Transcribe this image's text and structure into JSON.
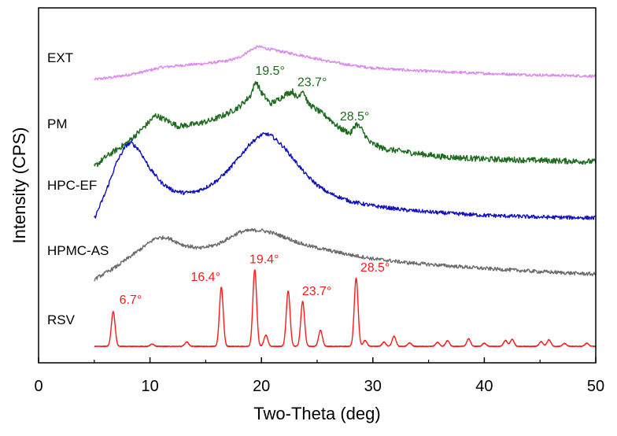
{
  "chart_data": {
    "type": "line",
    "title": "",
    "xlabel": "Two-Theta (deg)",
    "ylabel": "Intensity (CPS)",
    "xlim": [
      0,
      50
    ],
    "xticks": [
      "0",
      "10",
      "20",
      "30",
      "40",
      "50"
    ],
    "yticks_shown": false,
    "grid": false,
    "legend": "none",
    "series": [
      {
        "name": "EXT",
        "color": "#dd88ee",
        "x": [
          5,
          7,
          9,
          11,
          13,
          15,
          17,
          18,
          19,
          19.7,
          20.5,
          22,
          24,
          26,
          28,
          30,
          33,
          36,
          40,
          45,
          50
        ],
        "y": [
          0,
          0.5,
          1.2,
          2.2,
          2.6,
          2.9,
          3.4,
          4.0,
          5.3,
          6.0,
          5.6,
          5.0,
          4.2,
          3.3,
          2.6,
          2.1,
          1.7,
          1.4,
          1.1,
          0.8,
          0.6
        ],
        "noise": 0.25
      },
      {
        "name": "PM",
        "color": "#1e6a1e",
        "x": [
          5,
          6,
          8,
          9.5,
          10.5,
          11.5,
          12.5,
          14,
          15.5,
          17,
          18,
          19,
          19.5,
          20,
          20.8,
          21.5,
          22.2,
          22.8,
          23.2,
          23.7,
          24.2,
          25,
          26,
          27,
          28,
          28.5,
          29,
          29.7,
          31,
          33,
          36,
          40,
          45,
          50
        ],
        "y": [
          0,
          1.5,
          3.8,
          6.2,
          8.0,
          7.2,
          6.3,
          6.6,
          7.2,
          8.3,
          9.3,
          11.0,
          13.3,
          11.5,
          9.8,
          10.4,
          11.3,
          11.7,
          10.6,
          12.0,
          9.8,
          8.8,
          7.6,
          6.0,
          5.2,
          6.7,
          5.8,
          3.8,
          2.8,
          2.3,
          1.6,
          1.2,
          1.0,
          0.8
        ],
        "noise": 0.45
      },
      {
        "name": "HPC-EF",
        "color": "#1010c0",
        "x": [
          5,
          6,
          7,
          7.8,
          8.3,
          9,
          10,
          11,
          12,
          13,
          14,
          15,
          16,
          17,
          18,
          19,
          20,
          20.5,
          21,
          22,
          23,
          24,
          25,
          26,
          28,
          30,
          33,
          36,
          40,
          45,
          50
        ],
        "y": [
          0,
          3.0,
          6.5,
          8.4,
          8.8,
          8.0,
          5.8,
          4.2,
          3.3,
          3.0,
          3.1,
          3.6,
          4.4,
          5.6,
          7.1,
          8.7,
          9.7,
          9.8,
          9.5,
          8.3,
          6.7,
          5.1,
          3.9,
          3.0,
          2.0,
          1.5,
          1.0,
          0.7,
          0.4,
          0.2,
          0.1
        ],
        "noise": 0.22
      },
      {
        "name": "HPMC-AS",
        "color": "#6b6b6b",
        "x": [
          5,
          7,
          9,
          10.5,
          11.5,
          13,
          14.5,
          16,
          17,
          18,
          19,
          20,
          21,
          22,
          23,
          24,
          26,
          28,
          30,
          33,
          36,
          40,
          45,
          50
        ],
        "y": [
          0,
          2.0,
          4.5,
          6.4,
          6.5,
          5.3,
          4.8,
          5.4,
          6.3,
          7.3,
          7.6,
          7.6,
          7.2,
          6.6,
          5.9,
          5.3,
          4.5,
          3.8,
          3.2,
          2.6,
          2.2,
          1.7,
          1.2,
          0.8
        ],
        "noise": 0.28
      },
      {
        "name": "RSV",
        "color": "#ff1a1a",
        "baseline": 0.3,
        "noise": 0.15,
        "peaks": [
          {
            "x": 6.7,
            "h": 14.7
          },
          {
            "x": 10.2,
            "h": 1.0
          },
          {
            "x": 13.3,
            "h": 1.9
          },
          {
            "x": 16.4,
            "h": 25.0
          },
          {
            "x": 19.4,
            "h": 32.5
          },
          {
            "x": 20.4,
            "h": 4.8
          },
          {
            "x": 22.4,
            "h": 23.5
          },
          {
            "x": 23.7,
            "h": 19.0
          },
          {
            "x": 25.3,
            "h": 6.8
          },
          {
            "x": 28.5,
            "h": 29.0
          },
          {
            "x": 29.3,
            "h": 2.5
          },
          {
            "x": 31.0,
            "h": 1.8
          },
          {
            "x": 31.9,
            "h": 4.3
          },
          {
            "x": 33.3,
            "h": 1.5
          },
          {
            "x": 35.8,
            "h": 1.7
          },
          {
            "x": 36.7,
            "h": 2.4
          },
          {
            "x": 38.6,
            "h": 3.2
          },
          {
            "x": 40.0,
            "h": 1.3
          },
          {
            "x": 41.9,
            "h": 2.5
          },
          {
            "x": 42.5,
            "h": 3.0
          },
          {
            "x": 45.1,
            "h": 2.0
          },
          {
            "x": 45.8,
            "h": 2.8
          },
          {
            "x": 47.2,
            "h": 1.2
          },
          {
            "x": 49.2,
            "h": 1.3
          }
        ]
      }
    ],
    "annotations": [
      {
        "series": "PM",
        "text": "19.5°",
        "x": 19.5
      },
      {
        "series": "PM",
        "text": "23.7°",
        "x": 23.7
      },
      {
        "series": "PM",
        "text": "28.5°",
        "x": 28.5
      },
      {
        "series": "RSV",
        "text": "6.7°",
        "x": 6.7
      },
      {
        "series": "RSV",
        "text": "16.4°",
        "x": 16.4
      },
      {
        "series": "RSV",
        "text": "19.4°",
        "x": 19.4
      },
      {
        "series": "RSV",
        "text": "23.7°",
        "x": 23.7
      },
      {
        "series": "RSV",
        "text": "28.5°",
        "x": 28.5
      }
    ]
  }
}
